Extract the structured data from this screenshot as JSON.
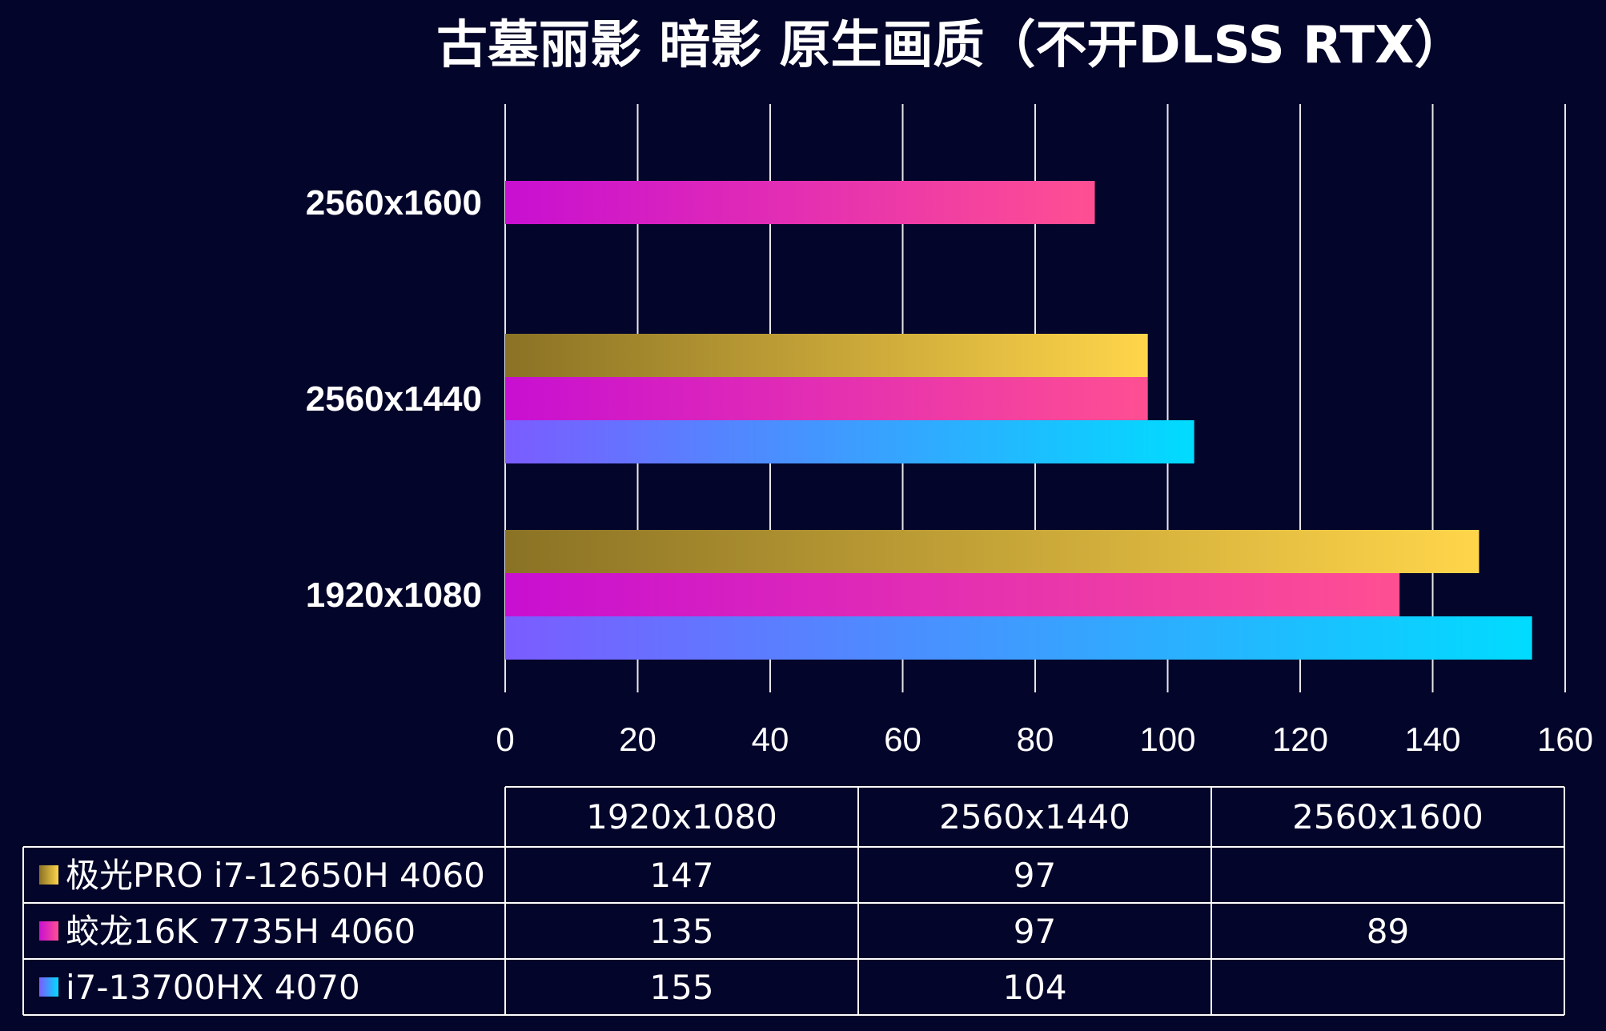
{
  "chart_data": {
    "type": "bar",
    "orientation": "horizontal",
    "title": "古墓丽影 暗影  原生画质（不开DLSS RTX）",
    "categories": [
      "1920x1080",
      "2560x1440",
      "2560x1600"
    ],
    "series": [
      {
        "name": "极光PRO i7-12650H 4060",
        "values": [
          147,
          97,
          null
        ],
        "gradient": [
          "#8a7225",
          "#ffd54a"
        ]
      },
      {
        "name": "蛟龙16K 7735H 4060",
        "values": [
          135,
          97,
          89
        ],
        "gradient": [
          "#c80fd2",
          "#ff4f92"
        ]
      },
      {
        "name": "i7-13700HX 4070",
        "values": [
          155,
          104,
          null
        ],
        "gradient": [
          "#7b5cff",
          "#00dcff"
        ]
      }
    ],
    "xlim": [
      0,
      160
    ],
    "xticks": [
      0,
      20,
      40,
      60,
      80,
      100,
      120,
      140,
      160
    ],
    "grid": true,
    "data_table": {
      "headers": [
        "1920x1080",
        "2560x1440",
        "2560x1600"
      ]
    }
  }
}
